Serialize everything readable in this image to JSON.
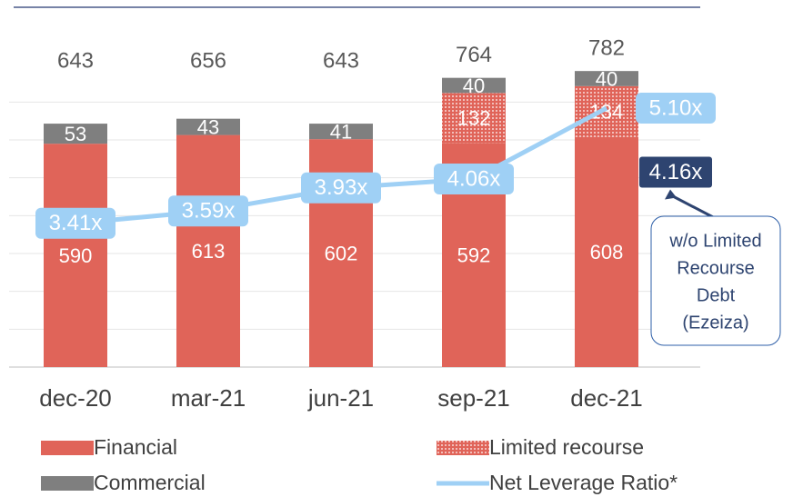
{
  "chart_data": {
    "type": "stacked_bar_line",
    "categories": [
      "dec-20",
      "mar-21",
      "jun-21",
      "sep-21",
      "dec-21"
    ],
    "series": [
      {
        "name": "Financial",
        "color": "#e06459",
        "values": [
          590,
          613,
          602,
          592,
          608
        ]
      },
      {
        "name": "Limited recourse",
        "color": "#e06459",
        "pattern": "dotted",
        "values": [
          null,
          null,
          null,
          132,
          134
        ]
      },
      {
        "name": "Commercial",
        "color": "#7f7f7f",
        "values": [
          53,
          43,
          41,
          40,
          40
        ]
      },
      {
        "name": "Net Leverage Ratio*",
        "color": "#9fd0f5",
        "type": "line",
        "axis": "y2",
        "values": [
          3.41,
          3.59,
          3.93,
          4.06,
          5.1
        ],
        "value_labels": [
          "3.41x",
          "3.59x",
          "3.93x",
          "4.06x",
          "5.10x"
        ]
      }
    ],
    "totals": [
      643,
      656,
      643,
      764,
      782
    ],
    "annotation": {
      "value": 4.16,
      "value_label": "4.16x",
      "color": "#2e4470",
      "lines": [
        "w/o Limited",
        "Recourse",
        "Debt",
        "(Ezeiza)"
      ]
    },
    "ylim": [
      0,
      900
    ],
    "yticks": [
      0,
      100,
      200,
      300,
      400,
      500,
      600,
      700
    ],
    "grid": true,
    "y2lim": [
      1.3,
      6.3
    ],
    "legend": "bottom"
  }
}
